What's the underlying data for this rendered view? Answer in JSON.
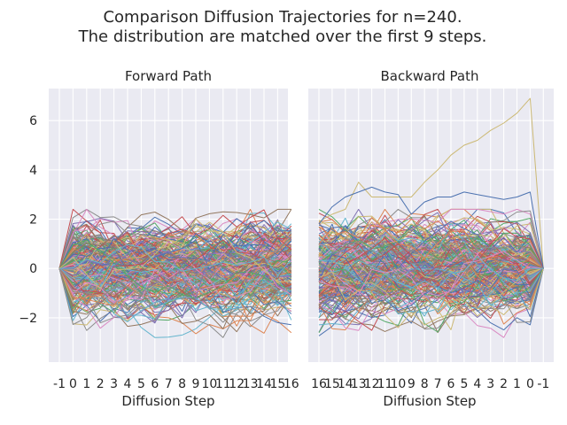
{
  "figure": {
    "title_line1": "Comparison Diffusion Trajectories for n=240.",
    "title_line2": "The distribution are matched over the first 9 steps."
  },
  "colors": {
    "panel_bg": "#eaeaf2",
    "grid": "#ffffff",
    "text": "#262626",
    "palette": [
      "#4c72b0",
      "#dd8452",
      "#55a868",
      "#c44e52",
      "#8172b3",
      "#937860",
      "#da8bc3",
      "#8c8c8c",
      "#ccb974",
      "#64b5cd"
    ]
  },
  "chart_data": [
    {
      "type": "line",
      "title": "Forward Path",
      "xlabel": "Diffusion Step",
      "ylabel": "",
      "x_tick_labels": [
        "-1",
        "0",
        "1",
        "2",
        "3",
        "4",
        "5",
        "6",
        "7",
        "8",
        "9",
        "10",
        "11",
        "12",
        "13",
        "14",
        "15",
        "16"
      ],
      "y_ticks": [
        -2,
        0,
        2,
        4,
        6
      ],
      "ylim": [
        -3.8,
        7.3
      ],
      "grid": true,
      "n_trajectories": 240,
      "description_values": {
        "start_value_at_step_-1": 0,
        "approx_envelope_max": 2.5,
        "approx_envelope_min": -2.9
      }
    },
    {
      "type": "line",
      "title": "Backward Path",
      "xlabel": "Diffusion Step",
      "ylabel": "",
      "x_tick_labels": [
        "16",
        "15",
        "14",
        "13",
        "12",
        "11",
        "10",
        "9",
        "8",
        "7",
        "6",
        "5",
        "4",
        "3",
        "2",
        "1",
        "0",
        "-1"
      ],
      "y_ticks": [
        -2,
        0,
        2,
        4,
        6
      ],
      "ylim": [
        -3.8,
        7.3
      ],
      "grid": true,
      "shared_y": true,
      "n_trajectories": 240,
      "highlighted_series": [
        {
          "color": "#ccb974",
          "values": [
            1.9,
            2.2,
            2.4,
            3.5,
            2.9,
            2.9,
            2.9,
            2.9,
            3.5,
            4.0,
            4.6,
            5.0,
            5.2,
            5.6,
            5.9,
            6.3,
            6.9,
            0.0
          ]
        },
        {
          "color": "#4c72b0",
          "values": [
            1.8,
            2.5,
            2.9,
            3.1,
            3.3,
            3.1,
            3.0,
            2.2,
            2.7,
            2.9,
            2.9,
            3.1,
            3.0,
            2.9,
            2.8,
            2.9,
            3.1,
            0.0
          ]
        }
      ],
      "description_values": {
        "end_value_at_step_-1": 0,
        "approx_envelope_max": 6.9,
        "approx_envelope_min": -3.0
      }
    }
  ]
}
